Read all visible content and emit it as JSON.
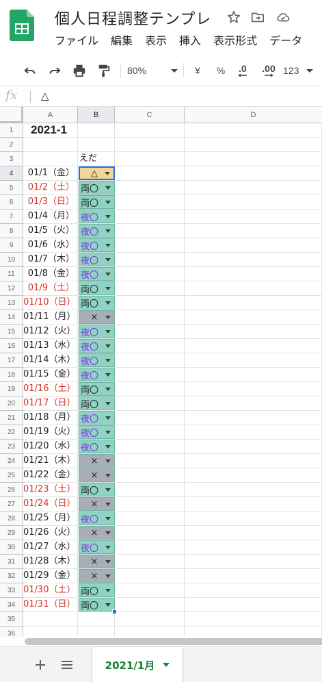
{
  "document": {
    "title": "個人日程調整テンプレ"
  },
  "menu": [
    "ファイル",
    "編集",
    "表示",
    "挿入",
    "表示形式",
    "データ"
  ],
  "toolbar": {
    "zoom": "80%",
    "currency": "¥",
    "percent": "%",
    "dec_decrease": ".0",
    "dec_increase": ".00",
    "number_format": "123"
  },
  "formula_bar": {
    "fx": "fx",
    "value": "△"
  },
  "columns": [
    "A",
    "B",
    "C",
    "D"
  ],
  "sheet": {
    "title": "2021-1",
    "member_name": "えだ",
    "rows": [
      {
        "num": "1"
      },
      {
        "num": "2"
      },
      {
        "num": "3"
      },
      {
        "num": "4",
        "date": "01/1（金）",
        "weekend": false,
        "value": "△"
      },
      {
        "num": "5",
        "date": "01/2（土）",
        "weekend": true,
        "value": "両〇"
      },
      {
        "num": "6",
        "date": "01/3（日）",
        "weekend": true,
        "value": "両〇"
      },
      {
        "num": "7",
        "date": "01/4（月）",
        "weekend": false,
        "value": "夜〇"
      },
      {
        "num": "8",
        "date": "01/5（火）",
        "weekend": false,
        "value": "夜〇"
      },
      {
        "num": "9",
        "date": "01/6（水）",
        "weekend": false,
        "value": "夜〇"
      },
      {
        "num": "10",
        "date": "01/7（木）",
        "weekend": false,
        "value": "夜〇"
      },
      {
        "num": "11",
        "date": "01/8（金）",
        "weekend": false,
        "value": "夜〇"
      },
      {
        "num": "12",
        "date": "01/9（土）",
        "weekend": true,
        "value": "両〇"
      },
      {
        "num": "13",
        "date": "01/10（日）",
        "weekend": true,
        "value": "両〇"
      },
      {
        "num": "14",
        "date": "01/11（月）",
        "weekend": false,
        "value": "×"
      },
      {
        "num": "15",
        "date": "01/12（火）",
        "weekend": false,
        "value": "夜〇"
      },
      {
        "num": "16",
        "date": "01/13（水）",
        "weekend": false,
        "value": "夜〇"
      },
      {
        "num": "17",
        "date": "01/14（木）",
        "weekend": false,
        "value": "夜〇"
      },
      {
        "num": "18",
        "date": "01/15（金）",
        "weekend": false,
        "value": "夜〇"
      },
      {
        "num": "19",
        "date": "01/16（土）",
        "weekend": true,
        "value": "両〇"
      },
      {
        "num": "20",
        "date": "01/17（日）",
        "weekend": true,
        "value": "両〇"
      },
      {
        "num": "21",
        "date": "01/18（月）",
        "weekend": false,
        "value": "夜〇"
      },
      {
        "num": "22",
        "date": "01/19（火）",
        "weekend": false,
        "value": "夜〇"
      },
      {
        "num": "23",
        "date": "01/20（水）",
        "weekend": false,
        "value": "夜〇"
      },
      {
        "num": "24",
        "date": "01/21（木）",
        "weekend": false,
        "value": "×"
      },
      {
        "num": "25",
        "date": "01/22（金）",
        "weekend": false,
        "value": "×"
      },
      {
        "num": "26",
        "date": "01/23（土）",
        "weekend": true,
        "value": "両〇"
      },
      {
        "num": "27",
        "date": "01/24（日）",
        "weekend": true,
        "value": "×"
      },
      {
        "num": "28",
        "date": "01/25（月）",
        "weekend": false,
        "value": "夜〇"
      },
      {
        "num": "29",
        "date": "01/26（火）",
        "weekend": false,
        "value": "×"
      },
      {
        "num": "30",
        "date": "01/27（水）",
        "weekend": false,
        "value": "夜〇"
      },
      {
        "num": "31",
        "date": "01/28（木）",
        "weekend": false,
        "value": "×"
      },
      {
        "num": "32",
        "date": "01/29（金）",
        "weekend": false,
        "value": "×"
      },
      {
        "num": "33",
        "date": "01/30（土）",
        "weekend": true,
        "value": "両〇"
      },
      {
        "num": "34",
        "date": "01/31（日）",
        "weekend": true,
        "value": "両〇"
      },
      {
        "num": "35"
      },
      {
        "num": "36"
      }
    ]
  },
  "value_styles": {
    "△": {
      "bg": "#f3d598",
      "color": "#202124"
    },
    "両〇": {
      "bg": "#8fd3c2",
      "color": "#202124"
    },
    "夜〇": {
      "bg": "#8fd3c2",
      "color": "#7b2fe0"
    },
    "×": {
      "bg": "#a8aeb7",
      "color": "#202124"
    }
  },
  "colors": {
    "weekend_date": "#d93025",
    "selection": "#1a73e8",
    "sheet_tab": "#188038"
  },
  "tabs": {
    "active_sheet": "2021/1月"
  }
}
